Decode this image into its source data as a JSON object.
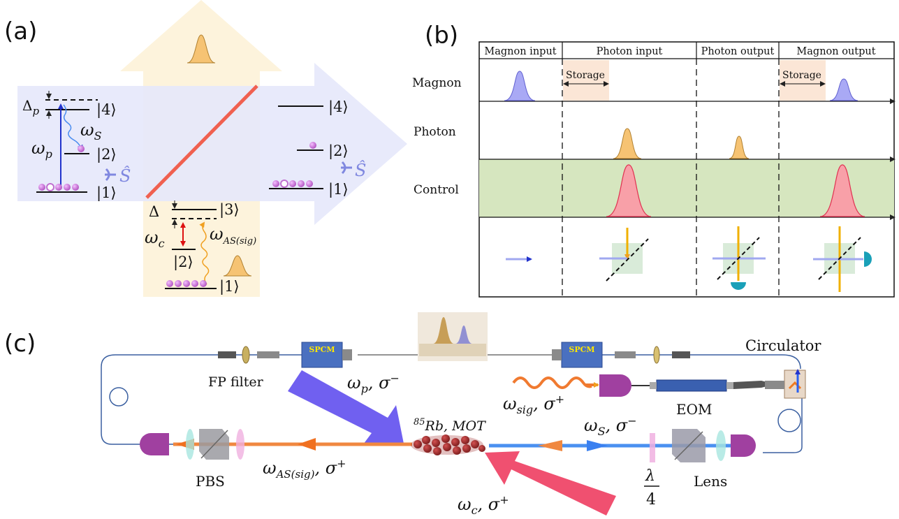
{
  "panel_a": {
    "label": "(a)",
    "left_levels": {
      "delta_p": "Δ",
      "delta_p_sub": "p",
      "k4": "|4⟩",
      "k2": "|2⟩",
      "k1": "|1⟩",
      "omega_s": "ω",
      "omega_s_sub": "S",
      "omega_p": "ω",
      "omega_p_sub": "p",
      "s_hat": "Ŝ"
    },
    "right_levels": {
      "k4": "|4⟩",
      "k2": "|2⟩",
      "k1": "|1⟩",
      "s_hat": "Ŝ"
    },
    "bottom_levels": {
      "delta": "Δ",
      "k3": "|3⟩",
      "k2": "|2⟩",
      "k1": "|1⟩",
      "omega_c": "ω",
      "omega_c_sub": "c",
      "omega_as": "ω",
      "omega_as_sub": "AS(sig)"
    }
  },
  "panel_b": {
    "label": "(b)",
    "columns": [
      "Magnon input",
      "Photon input",
      "Photon output",
      "Magnon output"
    ],
    "rows": [
      "Magnon",
      "Photon",
      "Control"
    ],
    "storage_label": "Storage",
    "colors": {
      "magnon": "#8f8ff0",
      "photon": "#f5b94a",
      "control": "#f06a78",
      "control_bg": "#d6e6bf"
    }
  },
  "panel_c": {
    "label": "(c)",
    "spcm_left": "SPCM",
    "spcm_right": "SPCM",
    "fp_filter": "FP filter",
    "circulator": "Circulator",
    "eom": "EOM",
    "pbs": "PBS",
    "lens": "Lens",
    "rb": "Rb, MOT",
    "rb_sup": "85",
    "omega_p": "ω",
    "omega_p_sub": "p",
    "omega_p_pol": ", σ",
    "omega_p_sign": "−",
    "omega_sig": "ω",
    "omega_sig_sub": "sig",
    "omega_sig_pol": ", σ",
    "omega_sig_sign": "+",
    "omega_s": "ω",
    "omega_s_sub": "S",
    "omega_s_pol": ", σ",
    "omega_s_sign": "−",
    "omega_as": "ω",
    "omega_as_sub": "AS(sig)",
    "omega_as_pol": ", σ",
    "omega_as_sign": "+",
    "omega_c": "ω",
    "omega_c_sub": "c",
    "omega_c_pol": ", σ",
    "omega_c_sign": "+",
    "lambda_num": "λ",
    "lambda_den": "4"
  }
}
